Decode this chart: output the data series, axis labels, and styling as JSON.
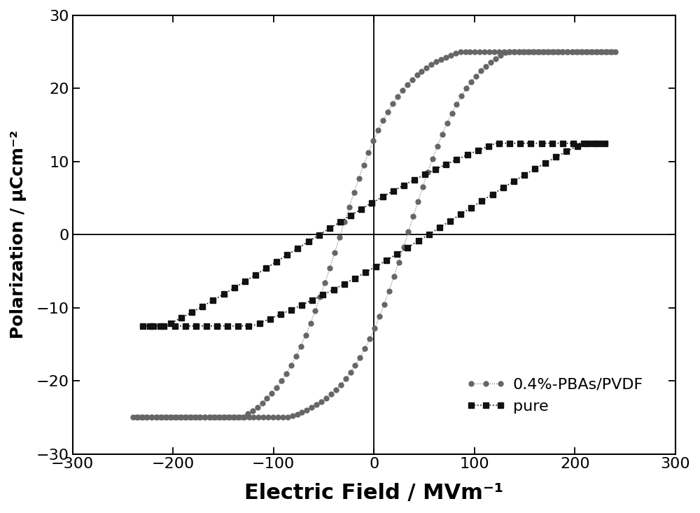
{
  "xlabel": "Electric Field / MVm⁻¹",
  "ylabel": "Polarization / μCcm⁻²",
  "xlim": [
    -300,
    300
  ],
  "ylim": [
    -30,
    30
  ],
  "xticks": [
    -300,
    -200,
    -100,
    0,
    100,
    200,
    300
  ],
  "yticks": [
    -30,
    -20,
    -10,
    0,
    10,
    20,
    30
  ],
  "xlabel_fontsize": 22,
  "ylabel_fontsize": 18,
  "tick_fontsize": 16,
  "legend_fontsize": 16,
  "pure_color": "#111111",
  "pbas_color": "#666666",
  "background_color": "#ffffff",
  "legend_entries": [
    "pure",
    "0.4%-PBAs/PVDF"
  ]
}
